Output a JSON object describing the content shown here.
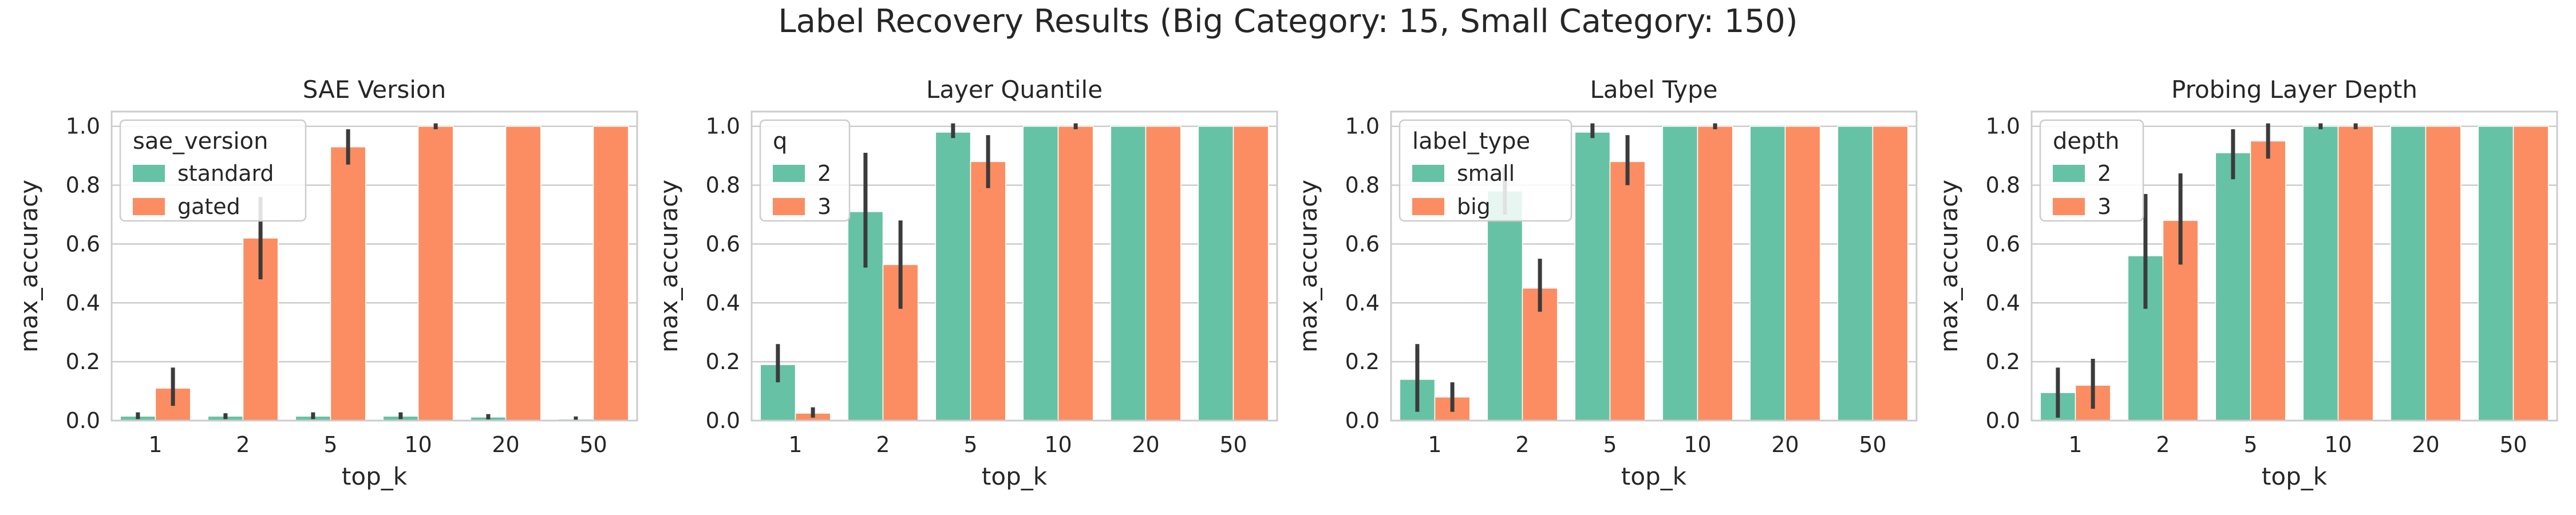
{
  "figure_title": "Label Recovery Results (Big Category: 15, Small Category: 150)",
  "palette": {
    "series_1": "#66c2a5",
    "series_2": "#fc8d62",
    "axes_bg": "#ffffff",
    "grid": "#cccccc",
    "frame": "#cccccc",
    "errorbar": "#3b3b3b"
  },
  "chart_data": [
    {
      "type": "bar",
      "title": "SAE Version",
      "xlabel": "top_k",
      "ylabel": "max_accuracy",
      "ylim": [
        0,
        1.05
      ],
      "yticks": [
        0.0,
        0.2,
        0.4,
        0.6,
        0.8,
        1.0
      ],
      "categories": [
        "1",
        "2",
        "5",
        "10",
        "20",
        "50"
      ],
      "grid": true,
      "legend": {
        "title": "sae_version",
        "placement": "upper-left"
      },
      "series": [
        {
          "name": "standard",
          "values": [
            0.015,
            0.015,
            0.015,
            0.015,
            0.012,
            0.005
          ],
          "errors": [
            [
              0.005,
              0.028
            ],
            [
              0.005,
              0.025
            ],
            [
              0.005,
              0.028
            ],
            [
              0.005,
              0.028
            ],
            [
              0.004,
              0.022
            ],
            [
              0.0,
              0.014
            ]
          ]
        },
        {
          "name": "gated",
          "values": [
            0.11,
            0.62,
            0.93,
            1.0,
            1.0,
            1.0
          ],
          "errors": [
            [
              0.05,
              0.18
            ],
            [
              0.48,
              0.76
            ],
            [
              0.87,
              0.99
            ],
            [
              0.99,
              1.01
            ],
            [
              1.0,
              1.0
            ],
            [
              1.0,
              1.0
            ]
          ]
        }
      ]
    },
    {
      "type": "bar",
      "title": "Layer Quantile",
      "xlabel": "top_k",
      "ylabel": "max_accuracy",
      "ylim": [
        0,
        1.05
      ],
      "yticks": [
        0.0,
        0.2,
        0.4,
        0.6,
        0.8,
        1.0
      ],
      "categories": [
        "1",
        "2",
        "5",
        "10",
        "20",
        "50"
      ],
      "grid": true,
      "legend": {
        "title": "q",
        "placement": "upper-left"
      },
      "series": [
        {
          "name": "2",
          "values": [
            0.19,
            0.71,
            0.98,
            1.0,
            1.0,
            1.0
          ],
          "errors": [
            [
              0.13,
              0.26
            ],
            [
              0.52,
              0.91
            ],
            [
              0.96,
              1.01
            ],
            [
              1.0,
              1.0
            ],
            [
              1.0,
              1.0
            ],
            [
              1.0,
              1.0
            ]
          ]
        },
        {
          "name": "3",
          "values": [
            0.025,
            0.53,
            0.88,
            1.0,
            1.0,
            1.0
          ],
          "errors": [
            [
              0.01,
              0.045
            ],
            [
              0.38,
              0.68
            ],
            [
              0.79,
              0.97
            ],
            [
              0.99,
              1.01
            ],
            [
              1.0,
              1.0
            ],
            [
              1.0,
              1.0
            ]
          ]
        }
      ]
    },
    {
      "type": "bar",
      "title": "Label Type",
      "xlabel": "top_k",
      "ylabel": "max_accuracy",
      "ylim": [
        0,
        1.05
      ],
      "yticks": [
        0.0,
        0.2,
        0.4,
        0.6,
        0.8,
        1.0
      ],
      "categories": [
        "1",
        "2",
        "5",
        "10",
        "20",
        "50"
      ],
      "grid": true,
      "legend": {
        "title": "label_type",
        "placement": "upper-left"
      },
      "series": [
        {
          "name": "small",
          "values": [
            0.14,
            0.78,
            0.98,
            1.0,
            1.0,
            1.0
          ],
          "errors": [
            [
              0.03,
              0.26
            ],
            [
              0.7,
              0.86
            ],
            [
              0.96,
              1.01
            ],
            [
              1.0,
              1.0
            ],
            [
              1.0,
              1.0
            ],
            [
              1.0,
              1.0
            ]
          ]
        },
        {
          "name": "big",
          "values": [
            0.08,
            0.45,
            0.88,
            1.0,
            1.0,
            1.0
          ],
          "errors": [
            [
              0.03,
              0.13
            ],
            [
              0.37,
              0.55
            ],
            [
              0.8,
              0.97
            ],
            [
              0.99,
              1.01
            ],
            [
              1.0,
              1.0
            ],
            [
              1.0,
              1.0
            ]
          ]
        }
      ]
    },
    {
      "type": "bar",
      "title": "Probing Layer Depth",
      "xlabel": "top_k",
      "ylabel": "max_accuracy",
      "ylim": [
        0,
        1.05
      ],
      "yticks": [
        0.0,
        0.2,
        0.4,
        0.6,
        0.8,
        1.0
      ],
      "categories": [
        "1",
        "2",
        "5",
        "10",
        "20",
        "50"
      ],
      "grid": true,
      "legend": {
        "title": "depth",
        "placement": "upper-left"
      },
      "series": [
        {
          "name": "2",
          "values": [
            0.095,
            0.56,
            0.91,
            1.0,
            1.0,
            1.0
          ],
          "errors": [
            [
              0.01,
              0.18
            ],
            [
              0.38,
              0.77
            ],
            [
              0.82,
              0.99
            ],
            [
              0.99,
              1.01
            ],
            [
              1.0,
              1.0
            ],
            [
              1.0,
              1.0
            ]
          ]
        },
        {
          "name": "3",
          "values": [
            0.12,
            0.68,
            0.95,
            1.0,
            1.0,
            1.0
          ],
          "errors": [
            [
              0.04,
              0.21
            ],
            [
              0.53,
              0.84
            ],
            [
              0.89,
              1.01
            ],
            [
              0.99,
              1.01
            ],
            [
              1.0,
              1.0
            ],
            [
              1.0,
              1.0
            ]
          ]
        }
      ]
    }
  ]
}
